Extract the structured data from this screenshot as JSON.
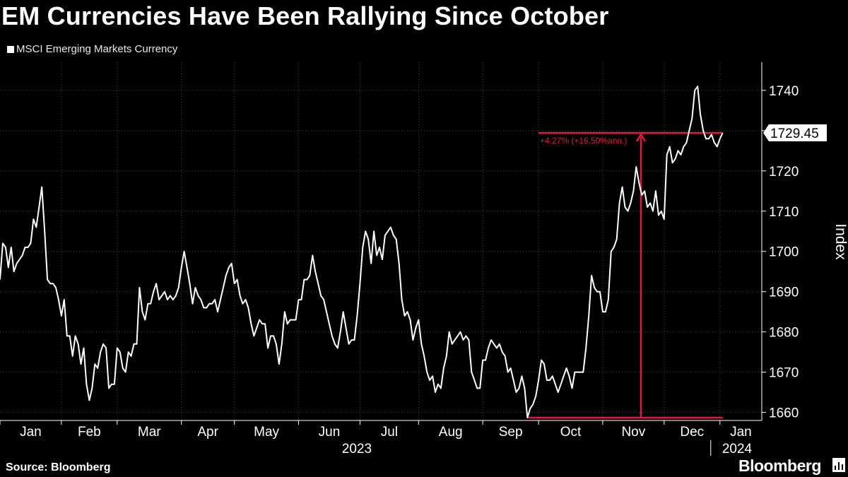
{
  "title": "EM Currencies Have Been Rallying Since October",
  "legend": {
    "label": "MSCI Emerging Markets Currency"
  },
  "source": "Source: Bloomberg",
  "brand": "Bloomberg",
  "colors": {
    "background": "#000000",
    "line": "#ffffff",
    "grid": "#4a4a4a",
    "annotation": "#e8183c"
  },
  "chart_data": {
    "type": "line",
    "title": "EM Currencies Have Been Rallying Since October",
    "ylabel": "Index",
    "ylim": [
      1658,
      1747
    ],
    "yticks": [
      1660,
      1670,
      1680,
      1690,
      1700,
      1710,
      1720,
      1730,
      1740
    ],
    "ytick_labels": [
      "1660",
      "1670",
      "1680",
      "1690",
      "1700",
      "1710",
      "1720",
      "",
      "1740"
    ],
    "xlim": [
      0,
      273
    ],
    "month_labels": [
      "Jan",
      "Feb",
      "Mar",
      "Apr",
      "May",
      "Jun",
      "Jul",
      "Aug",
      "Sep",
      "Oct",
      "Nov",
      "Dec",
      "Jan"
    ],
    "year_labels": [
      "2023",
      "2024"
    ],
    "last_value_label": "1729.45",
    "annotation_text": "+4.27% (+16.50%ann.)",
    "annotation_low": 1658.7,
    "annotation_high": 1729.45,
    "series": [
      {
        "name": "MSCI Emerging Markets Currency",
        "values": [
          1693,
          1702,
          1701,
          1696,
          1701,
          1695,
          1697,
          1698,
          1699,
          1701,
          1701,
          1702,
          1708,
          1706,
          1711,
          1716,
          1705,
          1693,
          1692,
          1692,
          1691,
          1688,
          1684,
          1688,
          1679,
          1679,
          1674,
          1679,
          1677,
          1672,
          1676,
          1667,
          1663,
          1666,
          1672,
          1671,
          1675,
          1677,
          1676,
          1666,
          1667,
          1667,
          1676,
          1675,
          1671,
          1670,
          1675,
          1674,
          1677,
          1677,
          1691,
          1685,
          1683,
          1687,
          1687,
          1690,
          1692,
          1688,
          1689,
          1690,
          1688,
          1689,
          1688,
          1689,
          1691,
          1696,
          1700,
          1696,
          1692,
          1687,
          1691,
          1689,
          1688,
          1686,
          1686,
          1687,
          1687,
          1688,
          1685,
          1688,
          1691,
          1694,
          1696,
          1697,
          1692,
          1693,
          1689,
          1687,
          1688,
          1686,
          1682,
          1679,
          1681,
          1683,
          1682,
          1682,
          1676,
          1679,
          1679,
          1677,
          1672,
          1677,
          1685,
          1682,
          1683,
          1683,
          1683,
          1688,
          1688,
          1693,
          1693,
          1694,
          1699,
          1695,
          1692,
          1689,
          1688,
          1685,
          1682,
          1679,
          1677,
          1676,
          1680,
          1685,
          1681,
          1677,
          1678,
          1678,
          1684,
          1692,
          1701,
          1705,
          1703,
          1697,
          1705,
          1699,
          1701,
          1698,
          1704,
          1705,
          1706,
          1704,
          1703,
          1697,
          1688,
          1684,
          1685,
          1683,
          1678,
          1681,
          1683,
          1677,
          1674,
          1670,
          1668,
          1669,
          1665,
          1667,
          1666,
          1671,
          1674,
          1680,
          1677,
          1678,
          1679,
          1680,
          1678,
          1679,
          1678,
          1670,
          1668,
          1666,
          1666,
          1673,
          1673,
          1676,
          1678,
          1677,
          1676,
          1677,
          1675,
          1674,
          1670,
          1671,
          1668,
          1665,
          1666,
          1669,
          1666,
          1658.7,
          1661,
          1662,
          1664,
          1668,
          1673,
          1672,
          1668,
          1668,
          1669,
          1667,
          1665,
          1667,
          1669,
          1671,
          1669,
          1666,
          1670,
          1670,
          1670,
          1670,
          1676,
          1684,
          1694,
          1691,
          1690,
          1690,
          1685,
          1685,
          1688,
          1700,
          1701,
          1703,
          1712,
          1716,
          1711,
          1710,
          1712,
          1715,
          1721,
          1717,
          1714,
          1715,
          1711,
          1712,
          1710,
          1715,
          1709,
          1710,
          1708,
          1724,
          1726,
          1722,
          1723,
          1725,
          1724,
          1726,
          1727,
          1730,
          1733,
          1740,
          1741,
          1734,
          1730,
          1728,
          1728,
          1729,
          1727,
          1726,
          1728,
          1729.45
        ]
      }
    ]
  }
}
